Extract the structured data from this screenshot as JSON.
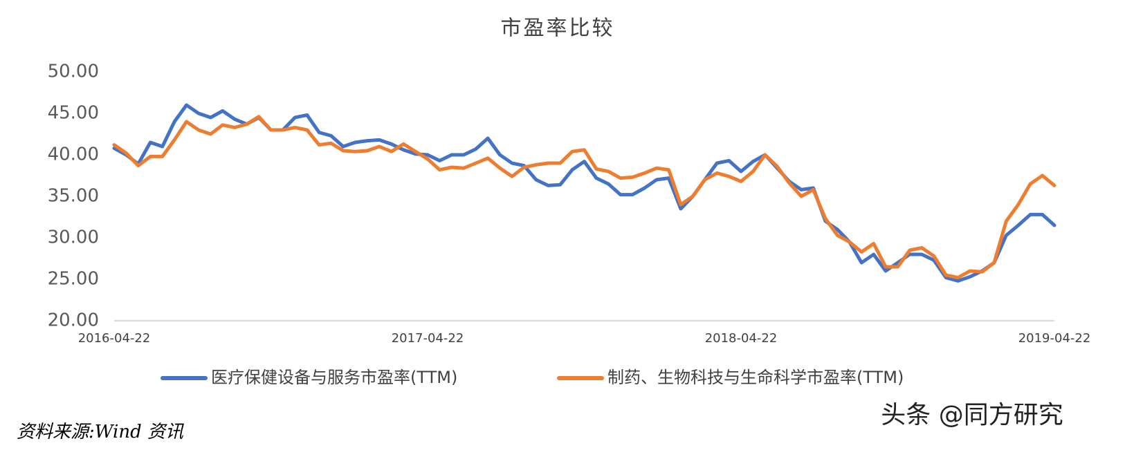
{
  "chart_data": {
    "type": "line",
    "title": "市盈率比较",
    "categories": [
      "2016-04-22",
      null,
      null,
      null,
      null,
      null,
      null,
      null,
      null,
      null,
      null,
      null,
      null,
      null,
      null,
      null,
      null,
      null,
      null,
      null,
      null,
      null,
      null,
      null,
      null,
      null,
      "2017-04-22",
      null,
      null,
      null,
      null,
      null,
      null,
      null,
      null,
      null,
      null,
      null,
      null,
      null,
      null,
      null,
      null,
      null,
      null,
      null,
      null,
      null,
      null,
      null,
      null,
      null,
      "2018-04-22",
      null,
      null,
      null,
      null,
      null,
      null,
      null,
      null,
      null,
      null,
      null,
      null,
      null,
      null,
      null,
      null,
      null,
      null,
      null,
      null,
      null,
      null,
      null,
      null,
      null,
      "2019-04-22"
    ],
    "series": [
      {
        "name": "医疗保健设备与服务市盈率(TTM)",
        "color": "#4472c4",
        "values": [
          40.8,
          40.0,
          38.9,
          41.5,
          41.0,
          44.0,
          46.0,
          45.0,
          44.5,
          45.3,
          44.3,
          43.7,
          44.5,
          43.0,
          43.0,
          44.5,
          44.8,
          42.7,
          42.3,
          41.0,
          41.5,
          41.7,
          41.8,
          41.3,
          40.6,
          40.1,
          40.0,
          39.3,
          40.0,
          40.0,
          40.7,
          42.0,
          40.0,
          39.0,
          38.7,
          37.0,
          36.3,
          36.4,
          38.2,
          39.2,
          37.2,
          36.5,
          35.2,
          35.2,
          36.0,
          37.0,
          37.2,
          33.5,
          35.0,
          37.0,
          39.0,
          39.3,
          38.0,
          39.2,
          40.0,
          38.4,
          36.8,
          35.8,
          36.0,
          32.0,
          31.0,
          29.5,
          27.0,
          28.0,
          26.0,
          27.0,
          28.0,
          28.0,
          27.3,
          25.2,
          24.8,
          25.3,
          26.0,
          27.0,
          30.3,
          31.5,
          32.8,
          32.8,
          31.5
        ]
      },
      {
        "name": "制药、生物科技与生命科学市盈率(TTM)",
        "color": "#ed7d31",
        "values": [
          41.2,
          40.2,
          38.7,
          39.8,
          39.8,
          41.8,
          44.0,
          43.0,
          42.5,
          43.6,
          43.3,
          43.7,
          44.6,
          43.0,
          43.0,
          43.3,
          43.0,
          41.2,
          41.4,
          40.5,
          40.4,
          40.5,
          41.0,
          40.4,
          41.3,
          40.4,
          39.5,
          38.2,
          38.5,
          38.4,
          39.0,
          39.6,
          38.4,
          37.4,
          38.5,
          38.8,
          39.0,
          39.0,
          40.4,
          40.6,
          38.3,
          38.0,
          37.2,
          37.3,
          37.8,
          38.4,
          38.2,
          34.0,
          35.0,
          37.0,
          37.8,
          37.4,
          36.8,
          38.0,
          40.0,
          38.6,
          36.6,
          35.0,
          35.8,
          32.3,
          30.3,
          29.5,
          28.3,
          29.3,
          26.5,
          26.5,
          28.5,
          28.8,
          27.8,
          25.5,
          25.2,
          26.0,
          25.9,
          27.0,
          32.0,
          34.0,
          36.5,
          37.5,
          36.3
        ]
      }
    ],
    "ylim": [
      20,
      50
    ],
    "yticks": [
      {
        "value": 20,
        "label": "20.00"
      },
      {
        "value": 25,
        "label": "25.00"
      },
      {
        "value": 30,
        "label": "30.00"
      },
      {
        "value": 35,
        "label": "35.00"
      },
      {
        "value": 40,
        "label": "40.00"
      },
      {
        "value": 45,
        "label": "45.00"
      },
      {
        "value": 50,
        "label": "50.00"
      }
    ],
    "grid": false,
    "legend": "bottom",
    "source": "资料来源:Wind 资讯",
    "watermark": "头条 @同方研究"
  }
}
